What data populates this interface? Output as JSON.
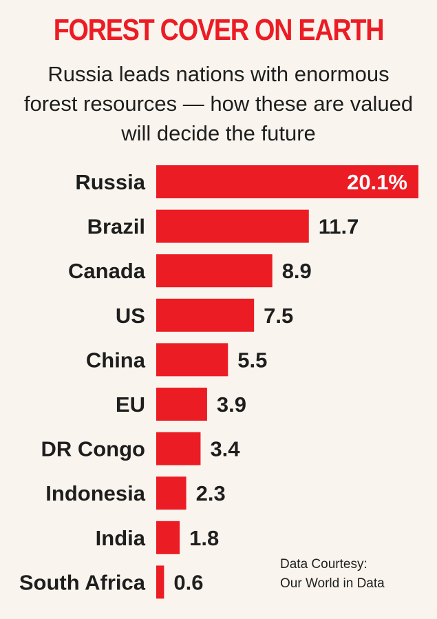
{
  "colors": {
    "accent": "#ec1c24",
    "text": "#1e1e1e",
    "background": "#f9f5ee"
  },
  "chart_data": {
    "type": "bar",
    "orientation": "horizontal",
    "title": "FOREST COVER ON EARTH",
    "subtitle": "Russia leads nations with enormous forest resources — how these are valued will decide the future",
    "categories": [
      "Russia",
      "Brazil",
      "Canada",
      "US",
      "China",
      "EU",
      "DR Congo",
      "Indonesia",
      "India",
      "South Africa"
    ],
    "values": [
      20.1,
      11.7,
      8.9,
      7.5,
      5.5,
      3.9,
      3.4,
      2.3,
      1.8,
      0.6
    ],
    "value_labels": [
      "20.1%",
      "11.7",
      "8.9",
      "7.5",
      "5.5",
      "3.9",
      "3.4",
      "2.3",
      "1.8",
      "0.6"
    ],
    "xlim": [
      0,
      20.1
    ],
    "grid": false,
    "legend": "none"
  },
  "credit": {
    "line1": "Data Courtesy:",
    "line2": "Our World in Data"
  }
}
